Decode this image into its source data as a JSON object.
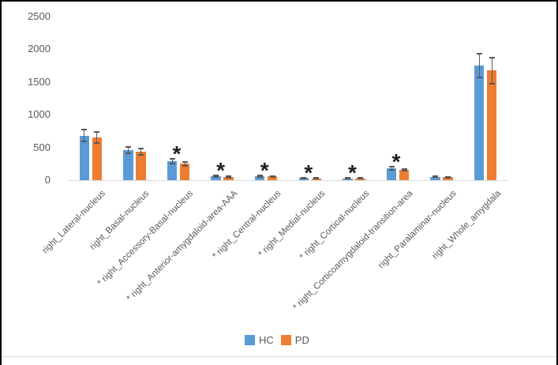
{
  "chart_data": {
    "type": "bar",
    "title": "",
    "xlabel": "",
    "ylabel": "",
    "ylim": [
      0,
      2500
    ],
    "yticks": [
      0,
      500,
      1000,
      1500,
      2000,
      2500
    ],
    "grid": false,
    "legend_position": "bottom",
    "categories": [
      "right_Lateral-nucleus",
      "right_Basal-nucleus",
      "* right_Accessory-Basal-nucleus",
      "* right_Anterior-amygdaloid-area-AAA",
      "* right_Central-nucleus",
      "* right_Medial-nucleus",
      "* right_Cortical-nucleus",
      "* right_Corticoamygdaloid-transition-area",
      "right_Paralaminar-nucleus",
      "right_Whole_amygdala"
    ],
    "series": [
      {
        "name": "HC",
        "color": "#5B9BD5",
        "values": [
          680,
          458,
          285,
          60,
          58,
          32,
          30,
          180,
          52,
          1750
        ],
        "errors": [
          95,
          50,
          35,
          12,
          10,
          6,
          5,
          20,
          7,
          180
        ]
      },
      {
        "name": "PD",
        "color": "#ED7D31",
        "values": [
          655,
          430,
          248,
          52,
          55,
          28,
          27,
          158,
          48,
          1670
        ],
        "errors": [
          85,
          48,
          32,
          10,
          9,
          6,
          5,
          15,
          6,
          200
        ]
      }
    ],
    "significant_categories": [
      2,
      3,
      4,
      5,
      6,
      7
    ],
    "significance_marker_glyph": "*",
    "colors": {
      "axis_line": "#D9D9D9",
      "tick_label": "#595959",
      "category_label": "#595959",
      "legend_label": "#595959",
      "error_bar": "#595959",
      "asterisk": "#1f1f1f",
      "frame_border": "#000000",
      "background": "#FFFFFF"
    }
  }
}
